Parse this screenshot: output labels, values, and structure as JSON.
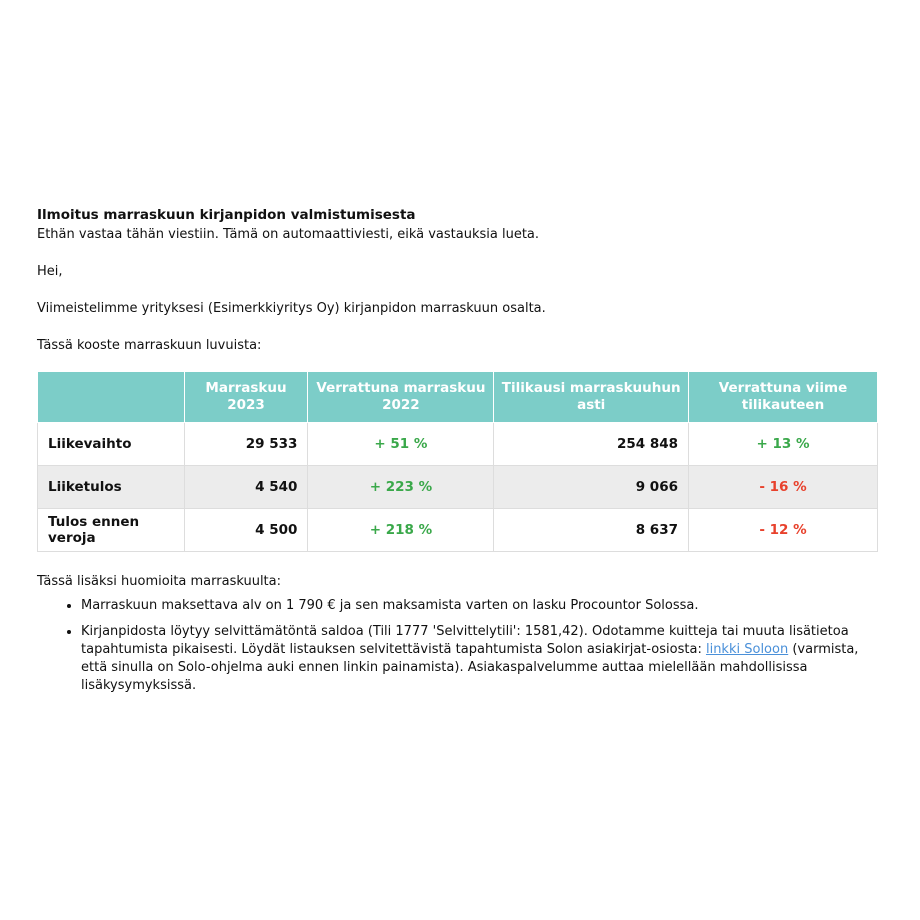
{
  "header": {
    "title": "Ilmoitus marraskuun kirjanpidon valmistumisesta",
    "subtitle": "Ethän vastaa tähän viestiin. Tämä on automaattiviesti, eikä vastauksia lueta."
  },
  "greeting": "Hei,",
  "intro": "Viimeistelimme yrityksesi (Esimerkkiyritys Oy) kirjanpidon marraskuun osalta.",
  "summary_intro": "Tässä kooste marraskuun luvuista:",
  "table": {
    "header_color": "#7ccdc8",
    "positive_color": "#3aa84a",
    "negative_color": "#e8412c",
    "columns": [
      "Marraskuu 2023",
      "Verrattuna marraskuu 2022",
      "Tilikausi marraskuuhun asti",
      "Verrattuna viime tilikauteen"
    ],
    "rows": [
      [
        "Liikevaihto",
        "29 533",
        "+ 51 %",
        "254 848",
        "+ 13 %"
      ],
      [
        "Liiketulos",
        "4 540",
        "+ 223 %",
        "9 066",
        "- 16 %"
      ],
      [
        "Tulos ennen veroja",
        "4 500",
        "+ 218 %",
        "8 637",
        "- 12 %"
      ]
    ]
  },
  "notes": {
    "intro": "Tässä lisäksi huomioita marraskuulta:",
    "items": [
      [
        "Marraskuun maksettava alv on 1 790 € ja sen maksamista varten on lasku Procountor Solossa."
      ],
      [
        "Kirjanpidosta löytyy selvittämätöntä saldoa (Tili 1777 'Selvittelytili': 1581,42). Odotamme kuitteja tai muuta lisätietoa tapahtumista pikaisesti. Löydät listauksen selvitettävistä tapahtumista Solon asiakirjat-osiosta:",
        "linkki Soloon",
        "(varmista, että sinulla on Solo-ohjelma auki ennen linkin painamista). Asiakaspalvelumme auttaa mielellään mahdollisissa lisäkysymyksissä."
      ]
    ]
  }
}
